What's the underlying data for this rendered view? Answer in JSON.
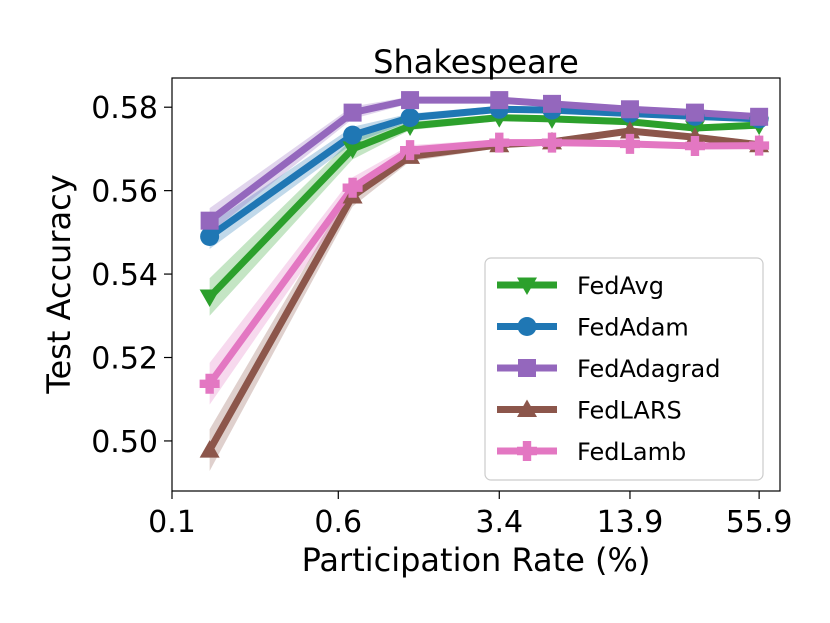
{
  "chart_data": {
    "type": "line",
    "title": "Shakespeare",
    "xlabel": "Participation Rate (%)",
    "ylabel": "Test Accuracy",
    "x_scale": "log",
    "x": [
      0.15,
      0.7,
      1.3,
      3.4,
      6.0,
      13.9,
      28.0,
      55.9
    ],
    "xticks": [
      0.1,
      0.6,
      3.4,
      13.9,
      55.9
    ],
    "xtick_labels": [
      "0.1",
      "0.6",
      "3.4",
      "13.9",
      "55.9"
    ],
    "xlim": [
      0.1,
      70
    ],
    "yticks": [
      0.5,
      0.52,
      0.54,
      0.56,
      0.58
    ],
    "ytick_labels": [
      "0.50",
      "0.52",
      "0.54",
      "0.56",
      "0.58"
    ],
    "ylim": [
      0.488,
      0.587
    ],
    "grid": false,
    "legend": "lower-right",
    "series": [
      {
        "name": "FedAvg",
        "color": "#2ca02c",
        "marker": "triangle-down",
        "values": [
          0.5345,
          0.57,
          0.5755,
          0.5775,
          0.5772,
          0.5765,
          0.575,
          0.5757
        ],
        "band": [
          0.0045,
          0.0025,
          0.001,
          0.0008,
          0.0008,
          0.0008,
          0.0008,
          0.0008
        ]
      },
      {
        "name": "FedAdam",
        "color": "#1f77b4",
        "marker": "circle",
        "values": [
          0.549,
          0.5733,
          0.5775,
          0.5795,
          0.5793,
          0.5785,
          0.5778,
          0.5772
        ],
        "band": [
          0.003,
          0.002,
          0.001,
          0.0008,
          0.0008,
          0.0008,
          0.0008,
          0.0008
        ]
      },
      {
        "name": "FedAdagrad",
        "color": "#9467bd",
        "marker": "square",
        "values": [
          0.5528,
          0.5787,
          0.5817,
          0.5817,
          0.5808,
          0.5795,
          0.5787,
          0.5777
        ],
        "band": [
          0.003,
          0.0015,
          0.0008,
          0.0008,
          0.0008,
          0.0008,
          0.0008,
          0.0008
        ]
      },
      {
        "name": "FedLARS",
        "color": "#8c564b",
        "marker": "triangle-up",
        "values": [
          0.4978,
          0.5587,
          0.5682,
          0.571,
          0.5717,
          0.5743,
          0.5728,
          0.571
        ],
        "band": [
          0.005,
          0.0025,
          0.0012,
          0.0008,
          0.0008,
          0.0008,
          0.0008,
          0.0008
        ]
      },
      {
        "name": "FedLamb",
        "color": "#e377c2",
        "marker": "plus",
        "values": [
          0.5137,
          0.5607,
          0.5697,
          0.5715,
          0.5715,
          0.5712,
          0.5707,
          0.5708
        ],
        "band": [
          0.005,
          0.0025,
          0.0012,
          0.0008,
          0.0008,
          0.0008,
          0.0008,
          0.0008
        ]
      }
    ]
  }
}
